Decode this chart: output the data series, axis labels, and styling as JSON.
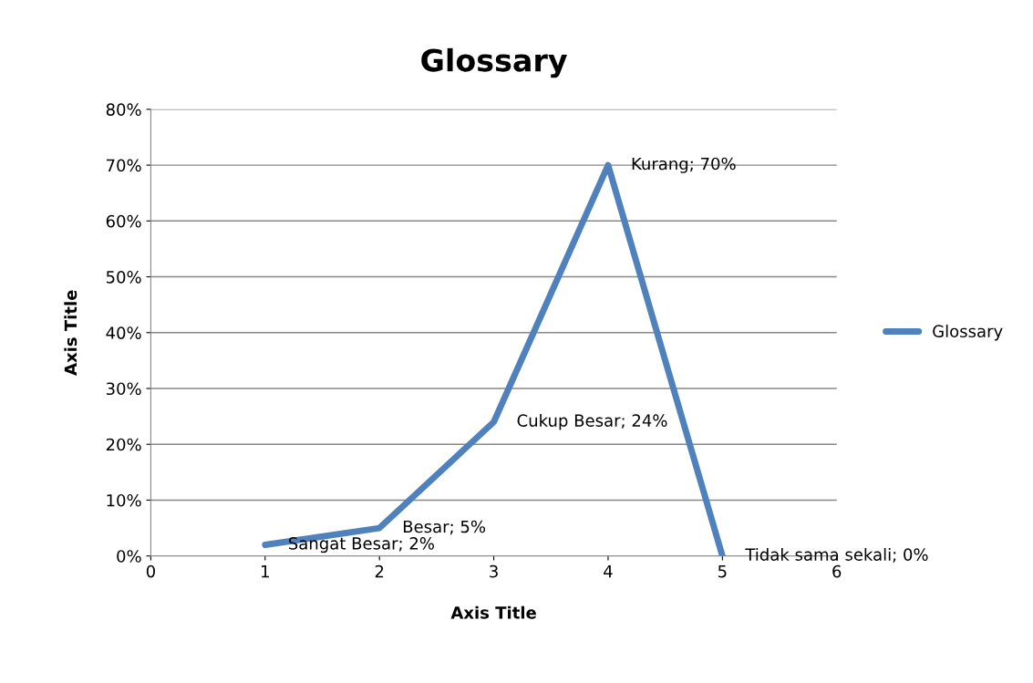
{
  "chart_data": {
    "type": "line",
    "title": "Glossary",
    "xlabel": "Axis Title",
    "ylabel": "Axis Title",
    "x": [
      1,
      2,
      3,
      4,
      5
    ],
    "series": [
      {
        "name": "Glossary",
        "color": "#4f81bd",
        "values": [
          2,
          5,
          24,
          70,
          0
        ],
        "value_labels": [
          "Sangat Besar; 2%",
          "Besar; 5%",
          "Cukup Besar; 24%",
          "Kurang; 70%",
          "Tidak sama sekali; 0%"
        ]
      }
    ],
    "xlim": [
      0,
      6
    ],
    "xticks": [
      0,
      1,
      2,
      3,
      4,
      5,
      6
    ],
    "ylim": [
      0,
      80
    ],
    "yticks": [
      {
        "value": 0,
        "label": "0%"
      },
      {
        "value": 10,
        "label": "10%"
      },
      {
        "value": 20,
        "label": "20%"
      },
      {
        "value": 30,
        "label": "30%"
      },
      {
        "value": 40,
        "label": "40%"
      },
      {
        "value": 50,
        "label": "50%"
      },
      {
        "value": 60,
        "label": "60%"
      },
      {
        "value": 70,
        "label": "70%"
      },
      {
        "value": 80,
        "label": "80%"
      }
    ],
    "grid": "y",
    "legend": "right",
    "marker": "none",
    "line_style": "solid"
  }
}
